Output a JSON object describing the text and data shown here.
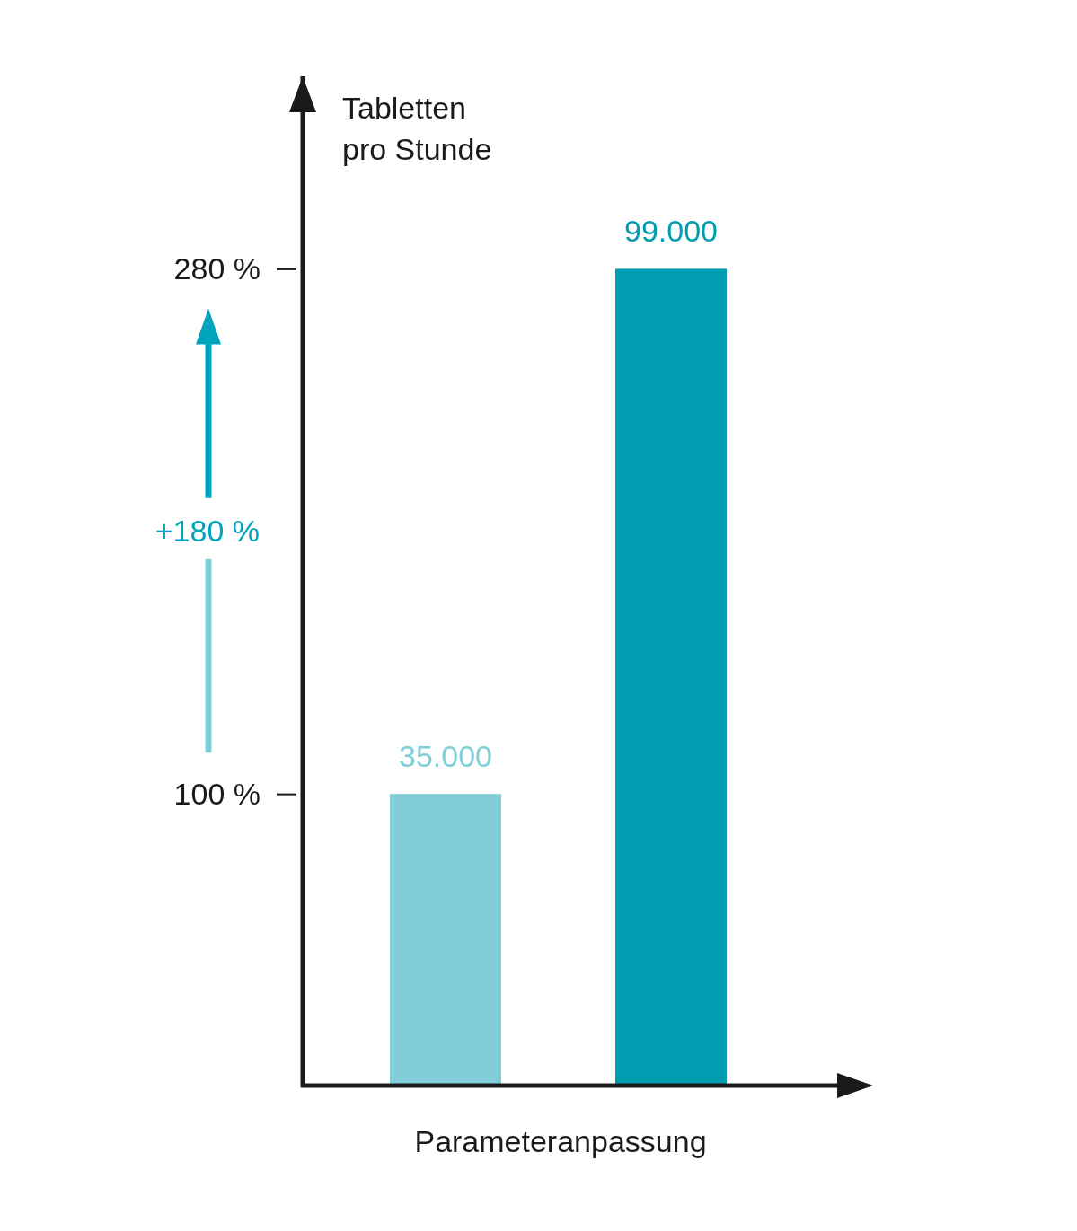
{
  "chart_data": {
    "type": "bar",
    "xlabel": "Parameteranpassung",
    "ylabel": "Tabletten pro Stunde",
    "categories": [
      null,
      null
    ],
    "values": [
      100,
      280
    ],
    "colors": [
      "#80ced8",
      "#009db3"
    ],
    "ylim": [
      0,
      346
    ],
    "yticks": [
      {
        "value": 100,
        "label": "100 %"
      },
      {
        "value": 280,
        "label": "280 %"
      }
    ],
    "annotations": [
      "+180 %",
      {
        "text": "35.000",
        "y": 100
      },
      {
        "text": "99.000",
        "y": 280
      }
    ]
  }
}
